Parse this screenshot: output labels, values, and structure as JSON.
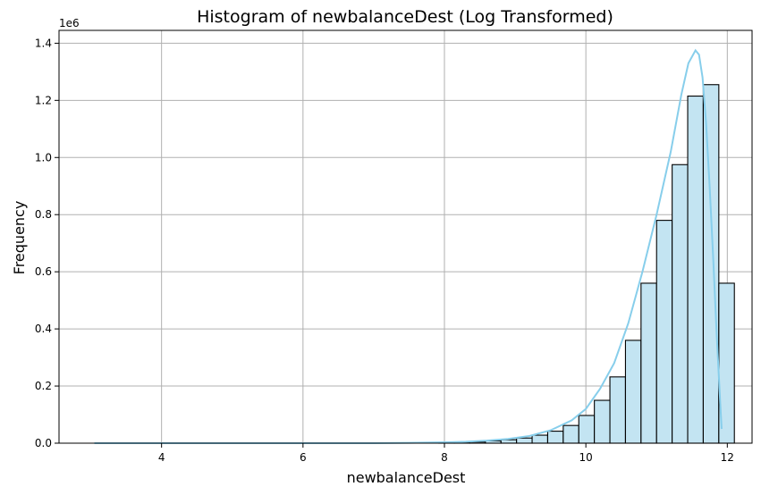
{
  "chart_data": {
    "type": "bar",
    "title": "Histogram of newbalanceDest (Log Transformed)",
    "xlabel": "newbalanceDest",
    "ylabel": "Frequency",
    "y_offset_label": "1e6",
    "xlim": [
      2.55,
      12.35
    ],
    "ylim": [
      0,
      1.445
    ],
    "x_ticks": [
      4,
      6,
      8,
      10,
      12
    ],
    "y_ticks": [
      0.0,
      0.2,
      0.4,
      0.6,
      0.8,
      1.0,
      1.2,
      1.4
    ],
    "x_tick_labels": [
      "4",
      "6",
      "8",
      "10",
      "12"
    ],
    "y_tick_labels": [
      "0.0",
      "0.2",
      "0.4",
      "0.6",
      "0.8",
      "1.0",
      "1.2",
      "1.4"
    ],
    "grid": true,
    "bar_color": "#c3e4f2",
    "kde_color": "#87ceeb",
    "bins": [
      {
        "x0": 7.92,
        "x1": 8.14,
        "value": 0.002
      },
      {
        "x0": 8.14,
        "x1": 8.36,
        "value": 0.003
      },
      {
        "x0": 8.36,
        "x1": 8.58,
        "value": 0.004
      },
      {
        "x0": 8.58,
        "x1": 8.8,
        "value": 0.008
      },
      {
        "x0": 8.8,
        "x1": 9.02,
        "value": 0.012
      },
      {
        "x0": 9.02,
        "x1": 9.24,
        "value": 0.018
      },
      {
        "x0": 9.24,
        "x1": 9.46,
        "value": 0.028
      },
      {
        "x0": 9.46,
        "x1": 9.68,
        "value": 0.042
      },
      {
        "x0": 9.68,
        "x1": 9.9,
        "value": 0.062
      },
      {
        "x0": 9.9,
        "x1": 10.12,
        "value": 0.097
      },
      {
        "x0": 10.12,
        "x1": 10.34,
        "value": 0.15
      },
      {
        "x0": 10.34,
        "x1": 10.56,
        "value": 0.232
      },
      {
        "x0": 10.56,
        "x1": 10.78,
        "value": 0.36
      },
      {
        "x0": 10.78,
        "x1": 11.0,
        "value": 0.56
      },
      {
        "x0": 11.0,
        "x1": 11.22,
        "value": 0.78
      },
      {
        "x0": 11.22,
        "x1": 11.44,
        "value": 0.975
      },
      {
        "x0": 11.44,
        "x1": 11.66,
        "value": 1.215
      },
      {
        "x0": 11.66,
        "x1": 11.88,
        "value": 1.255
      },
      {
        "x0": 11.88,
        "x1": 12.1,
        "value": 0.56
      }
    ],
    "kde": {
      "x": [
        3.05,
        4.0,
        5.0,
        6.0,
        7.0,
        7.5,
        8.0,
        8.3,
        8.6,
        8.9,
        9.2,
        9.5,
        9.8,
        10.0,
        10.2,
        10.4,
        10.6,
        10.8,
        11.0,
        11.2,
        11.35,
        11.45,
        11.55,
        11.6,
        11.65,
        11.7,
        11.75,
        11.8,
        11.85,
        11.9,
        11.92
      ],
      "y": [
        0.0,
        0.0,
        0.0,
        0.0,
        0.0,
        0.001,
        0.003,
        0.005,
        0.009,
        0.015,
        0.025,
        0.045,
        0.08,
        0.12,
        0.19,
        0.28,
        0.42,
        0.6,
        0.8,
        1.02,
        1.22,
        1.33,
        1.375,
        1.36,
        1.28,
        1.12,
        0.9,
        0.65,
        0.38,
        0.14,
        0.05
      ]
    }
  }
}
